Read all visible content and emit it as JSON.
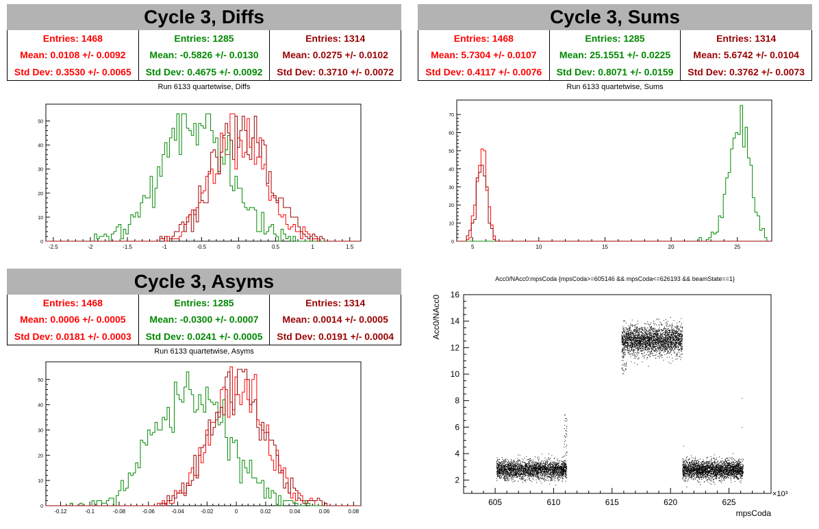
{
  "panels": {
    "diffs": {
      "title": "Cycle 3, Diffs",
      "subtitle": "Run 6133 quartetwise, Diffs",
      "stats": [
        {
          "entries": "Entries: 1468",
          "mean": "Mean: 0.0108 +/- 0.0092",
          "std": "Std Dev: 0.3530 +/- 0.0065"
        },
        {
          "entries": "Entries: 1285",
          "mean": "Mean: -0.5826 +/- 0.0130",
          "std": "Std Dev: 0.4675 +/- 0.0092"
        },
        {
          "entries": "Entries: 1314",
          "mean": "Mean: 0.0275 +/- 0.0102",
          "std": "Std Dev: 0.3710 +/- 0.0072"
        }
      ]
    },
    "sums": {
      "title": "Cycle 3, Sums",
      "subtitle": "Run 6133 quartetwise, Sums",
      "stats": [
        {
          "entries": "Entries: 1468",
          "mean": "Mean: 5.7304 +/- 0.0107",
          "std": "Std Dev: 0.4117 +/- 0.0076"
        },
        {
          "entries": "Entries: 1285",
          "mean": "Mean: 25.1551 +/- 0.0225",
          "std": "Std Dev: 0.8071 +/- 0.0159"
        },
        {
          "entries": "Entries: 1314",
          "mean": "Mean: 5.6742 +/- 0.0104",
          "std": "Std Dev: 0.3762 +/- 0.0073"
        }
      ]
    },
    "asyms": {
      "title": "Cycle 3, Asyms",
      "subtitle": "Run 6133 quartetwise, Asyms",
      "stats": [
        {
          "entries": "Entries: 1468",
          "mean": "Mean: 0.0006 +/- 0.0005",
          "std": "Std Dev: 0.0181 +/- 0.0003"
        },
        {
          "entries": "Entries: 1285",
          "mean": "Mean: -0.0300 +/- 0.0007",
          "std": "Std Dev: 0.0241 +/- 0.0005"
        },
        {
          "entries": "Entries: 1314",
          "mean": "Mean: 0.0014 +/- 0.0005",
          "std": "Std Dev: 0.0191 +/- 0.0004"
        }
      ]
    },
    "scatter": {
      "title": "Acc0/NAcc0:mpsCoda {mpsCoda>=605146 && mpsCoda<=626193 && beamState==1}",
      "xlabel": "mpsCoda",
      "ylabel": "Acc0/NAcc0",
      "xmult": "×10³"
    }
  },
  "colors": {
    "series1": "#ff0000",
    "series2": "#008800",
    "series3": "#990000"
  },
  "chart_data": [
    {
      "type": "histogram",
      "title": "Run 6133 quartetwise, Diffs",
      "xlim": [
        -2.6,
        1.65
      ],
      "ylim": [
        0,
        57
      ],
      "xticks": [
        "-2.5",
        "-2",
        "-1.5",
        "-1",
        "-0.5",
        "0",
        "0.5",
        "1",
        "1.5"
      ],
      "xtick_values": [
        -2.5,
        -2,
        -1.5,
        -1,
        -0.5,
        0,
        0.5,
        1,
        1.5
      ],
      "yticks": [
        0,
        10,
        20,
        30,
        40,
        50
      ],
      "series": [
        {
          "entries": 1468,
          "mean": 0.0108,
          "sd": 0.353,
          "peak": 53,
          "color": "#ff0000",
          "xmin": -1.1,
          "xmax": 1.1,
          "seed": 11
        },
        {
          "entries": 1285,
          "mean": -0.5826,
          "sd": 0.4675,
          "peak": 53,
          "color": "#008800",
          "xmin": -2.0,
          "xmax": 0.8,
          "seed": 22
        },
        {
          "entries": 1314,
          "mean": 0.0275,
          "sd": 0.371,
          "peak": 52,
          "color": "#990000",
          "xmin": -1.1,
          "xmax": 1.4,
          "seed": 33
        }
      ]
    },
    {
      "type": "histogram",
      "title": "Run 6133 quartetwise, Sums",
      "xlim": [
        3.8,
        27.6
      ],
      "ylim": [
        0,
        78
      ],
      "xticks": [
        "5",
        "10",
        "15",
        "20",
        "25"
      ],
      "xtick_values": [
        5,
        10,
        15,
        20,
        25
      ],
      "yticks": [
        0,
        10,
        20,
        30,
        40,
        50,
        60,
        70
      ],
      "series": [
        {
          "entries": 1468,
          "mean": 5.7304,
          "sd": 0.4117,
          "peak": 51,
          "color": "#ff0000",
          "xmin": 4.4,
          "xmax": 7.0,
          "seed": 44
        },
        {
          "entries": 1285,
          "mean": 25.1551,
          "sd": 0.8071,
          "peak": 75,
          "color": "#008800",
          "xmin": 21.5,
          "xmax": 27.2,
          "seed": 55
        },
        {
          "entries": 1314,
          "mean": 5.6742,
          "sd": 0.3762,
          "peak": 50,
          "color": "#990000",
          "xmin": 4.4,
          "xmax": 7.0,
          "seed": 66
        }
      ]
    },
    {
      "type": "histogram",
      "title": "Run 6133 quartetwise, Asyms",
      "xlim": [
        -0.13,
        0.085
      ],
      "ylim": [
        0,
        57
      ],
      "xticks": [
        "-0.12",
        "-0.1",
        "-0.08",
        "-0.06",
        "-0.04",
        "-0.02",
        "0",
        "0.02",
        "0.04",
        "0.06",
        "0.08"
      ],
      "xtick_values": [
        -0.12,
        -0.1,
        -0.08,
        -0.06,
        -0.04,
        -0.02,
        0,
        0.02,
        0.04,
        0.06,
        0.08
      ],
      "yticks": [
        0,
        10,
        20,
        30,
        40,
        50
      ],
      "series": [
        {
          "entries": 1468,
          "mean": 0.0006,
          "sd": 0.0181,
          "peak": 55,
          "color": "#ff0000",
          "xmin": -0.058,
          "xmax": 0.062,
          "seed": 77
        },
        {
          "entries": 1285,
          "mean": -0.03,
          "sd": 0.0241,
          "peak": 53,
          "color": "#008800",
          "xmin": -0.115,
          "xmax": 0.05,
          "seed": 88
        },
        {
          "entries": 1314,
          "mean": 0.0014,
          "sd": 0.0191,
          "peak": 54,
          "color": "#990000",
          "xmin": -0.058,
          "xmax": 0.062,
          "seed": 99
        }
      ]
    },
    {
      "type": "scatter",
      "title": "Acc0/NAcc0:mpsCoda {mpsCoda>=605146 && mpsCoda<=626193 && beamState==1}",
      "xlabel": "mpsCoda",
      "ylabel": "Acc0/NAcc0",
      "xlim": [
        602.3,
        628.6
      ],
      "ylim": [
        1,
        16
      ],
      "x_units": "×10³",
      "xticks": [
        "605",
        "610",
        "615",
        "620",
        "625"
      ],
      "xtick_values": [
        605,
        610,
        615,
        620,
        625
      ],
      "yticks": [
        "2",
        "4",
        "6",
        "8",
        "10",
        "12",
        "14",
        "16"
      ],
      "ytick_values": [
        2,
        4,
        6,
        8,
        10,
        12,
        14,
        16
      ],
      "clusters": [
        {
          "x": [
            605.1,
            611.1
          ],
          "y_center": 2.8,
          "y_spread": 0.35
        },
        {
          "x": [
            615.8,
            621.0
          ],
          "y_center": 12.6,
          "y_spread": 0.55
        },
        {
          "x": [
            621.0,
            626.2
          ],
          "y_center": 2.8,
          "y_spread": 0.35
        }
      ]
    }
  ]
}
